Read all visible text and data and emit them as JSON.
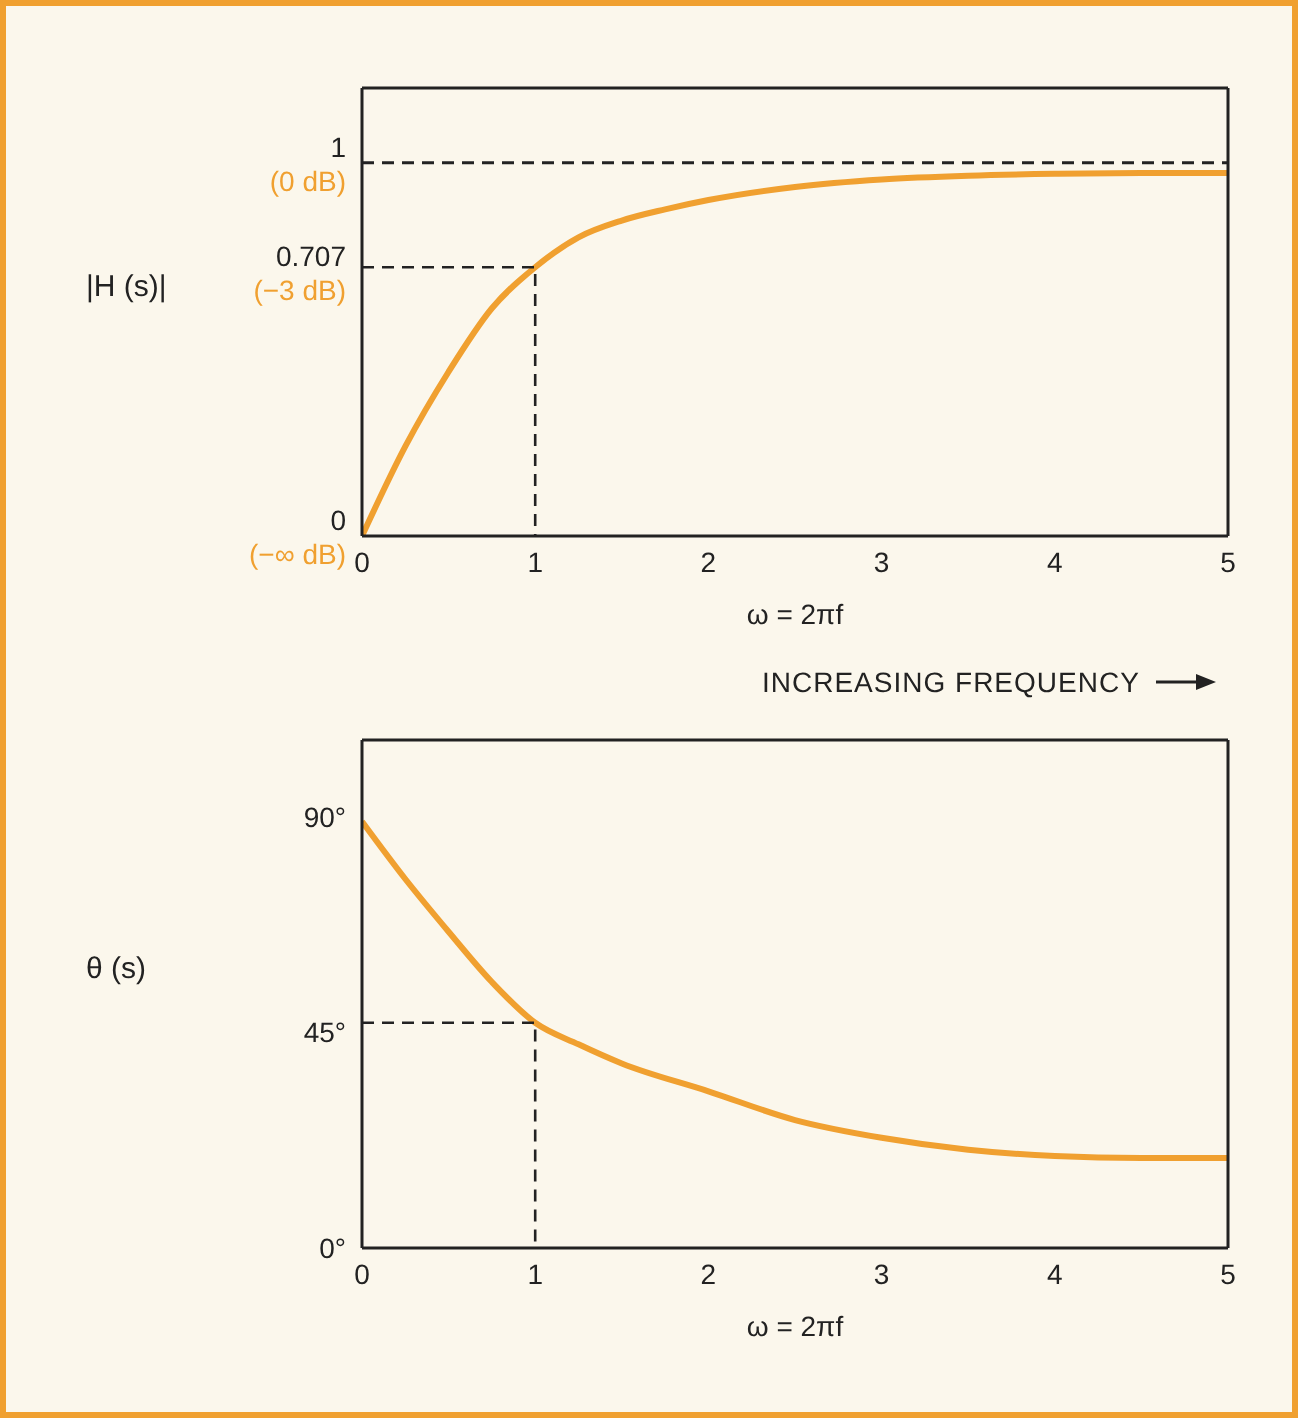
{
  "chart_data": [
    {
      "type": "line",
      "ylabel": "|H (s)|",
      "xlabel": "ω = 2πf",
      "annotations": [
        "INCREASING FREQUENCY",
        "(−∞ dB)",
        "(−3 dB)",
        "(0 dB)"
      ],
      "xlim": [
        0,
        5
      ],
      "xticks": [
        0,
        1,
        2,
        3,
        4,
        5
      ],
      "ylim": [
        0,
        1.2
      ],
      "yticks": [
        0,
        0.707,
        1
      ],
      "legend": false,
      "marker": "none",
      "ref_lines": [
        {
          "axis": "y",
          "value": 1,
          "label": null,
          "color": "#222222",
          "line_style": "dashed"
        }
      ],
      "series": [
        {
          "color": "#f0a030",
          "x": [
            0,
            0.25,
            0.5,
            0.75,
            1,
            1.25,
            1.5,
            1.75,
            2,
            2.5,
            3,
            3.5,
            4,
            4.5,
            5
          ],
          "values": [
            0,
            0.24,
            0.44,
            0.61,
            0.72,
            0.8,
            0.845,
            0.875,
            0.9,
            0.935,
            0.955,
            0.965,
            0.97,
            0.972,
            0.972
          ],
          "line_style": "solid"
        },
        {
          "color": "#222222",
          "x": [
            0,
            1,
            1
          ],
          "values": [
            0.72,
            0.72,
            0
          ],
          "line_style": "dashed"
        }
      ]
    },
    {
      "type": "line",
      "ylabel": "θ (s)",
      "xlabel": "ω = 2πf",
      "xlim": [
        0,
        5
      ],
      "xticks": [
        0,
        1,
        2,
        3,
        4,
        5
      ],
      "ylim": [
        0,
        106
      ],
      "yticks": [
        {
          "value": 0,
          "label": "0°"
        },
        {
          "value": 45,
          "label": "45°"
        },
        {
          "value": 90,
          "label": "90°"
        }
      ],
      "legend": false,
      "marker": "none",
      "series": [
        {
          "color": "#f0a030",
          "x": [
            0,
            0.25,
            0.5,
            0.75,
            1,
            1.25,
            1.5,
            2,
            2.5,
            3,
            3.5,
            4,
            4.5,
            5
          ],
          "values": [
            89,
            77,
            66,
            55.5,
            47,
            42.5,
            38.5,
            32.7,
            26.7,
            23,
            20.5,
            19.2,
            18.8,
            18.8
          ],
          "line_style": "solid"
        },
        {
          "color": "#222222",
          "x": [
            0,
            1,
            1
          ],
          "values": [
            47,
            47,
            0
          ],
          "line_style": "dashed"
        }
      ]
    }
  ]
}
